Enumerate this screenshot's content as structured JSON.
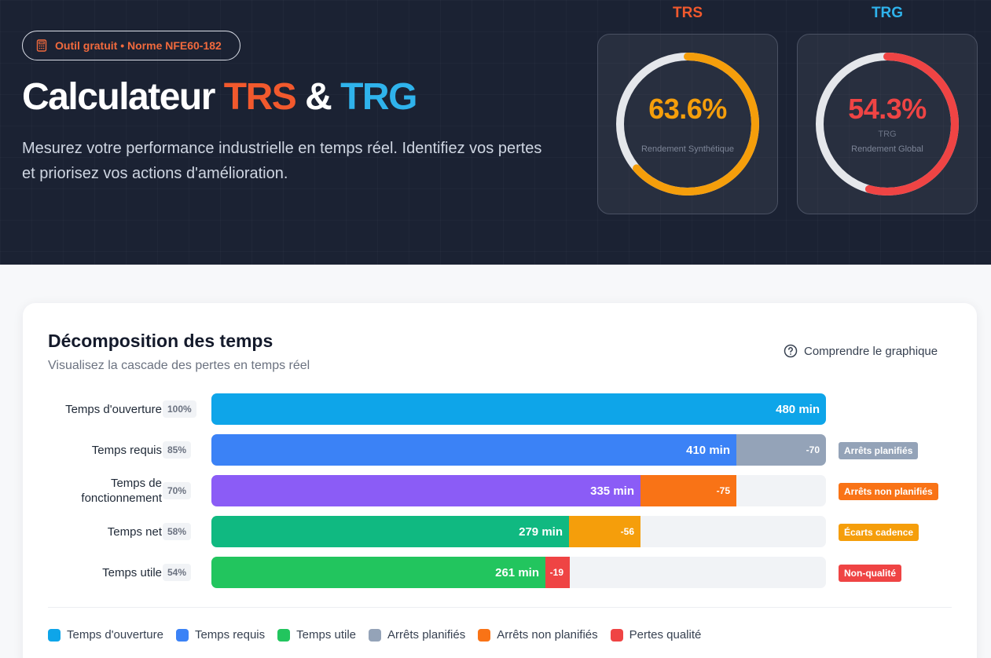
{
  "hero": {
    "badge": "Outil gratuit • Norme NFE60-182",
    "title_prefix": "Calculateur ",
    "title_trs": "TRS",
    "title_amp": " & ",
    "title_trg": "TRG",
    "description": "Mesurez votre performance industrielle en temps réel. Identifiez vos pertes et priorisez vos actions d'amélioration."
  },
  "gauges": {
    "trs": {
      "label": "TRS",
      "value": "63.6%",
      "fraction": 0.636,
      "ghost": "",
      "sublabel": "Rendement Synthétique",
      "color": "#f59e0b",
      "label_color": "#f2592d"
    },
    "trg": {
      "label": "TRG",
      "value": "54.3%",
      "fraction": 0.543,
      "ghost": "TRG",
      "sublabel": "Rendement Global",
      "color": "#ef4444",
      "label_color": "#2fb3ec"
    }
  },
  "chart": {
    "title": "Décomposition des temps",
    "subtitle": "Visualisez la cascade des pertes en temps réel",
    "help_label": "Comprendre le graphique",
    "rows": [
      {
        "label": "Temps d'ouverture",
        "pct": "100%",
        "value_label": "480 min",
        "value": 480,
        "loss_label": "",
        "loss": 0,
        "tag": "",
        "color": "#0ea5e9",
        "loss_color": ""
      },
      {
        "label": "Temps requis",
        "pct": "85%",
        "value_label": "410 min",
        "value": 410,
        "loss_label": "-70",
        "loss": 70,
        "tag": "Arrêts planifiés",
        "color": "#3b82f6",
        "loss_color": "#94a3b8"
      },
      {
        "label": "Temps de fonctionnement",
        "pct": "70%",
        "value_label": "335 min",
        "value": 335,
        "loss_label": "-75",
        "loss": 75,
        "tag": "Arrêts non planifiés",
        "color": "#8b5cf6",
        "loss_color": "#f97316"
      },
      {
        "label": "Temps net",
        "pct": "58%",
        "value_label": "279 min",
        "value": 279,
        "loss_label": "-56",
        "loss": 56,
        "tag": "Écarts cadence",
        "color": "#10b981",
        "loss_color": "#f59e0b"
      },
      {
        "label": "Temps utile",
        "pct": "54%",
        "value_label": "261 min",
        "value": 261,
        "loss_label": "-19",
        "loss": 19,
        "tag": "Non-qualité",
        "color": "#22c55e",
        "loss_color": "#ef4444"
      }
    ],
    "legend": [
      {
        "label": "Temps d'ouverture",
        "color": "#0ea5e9"
      },
      {
        "label": "Temps requis",
        "color": "#3b82f6"
      },
      {
        "label": "Temps utile",
        "color": "#22c55e"
      },
      {
        "label": "Arrêts planifiés",
        "color": "#94a3b8"
      },
      {
        "label": "Arrêts non planifiés",
        "color": "#f97316"
      },
      {
        "label": "Pertes qualité",
        "color": "#ef4444"
      }
    ]
  }
}
